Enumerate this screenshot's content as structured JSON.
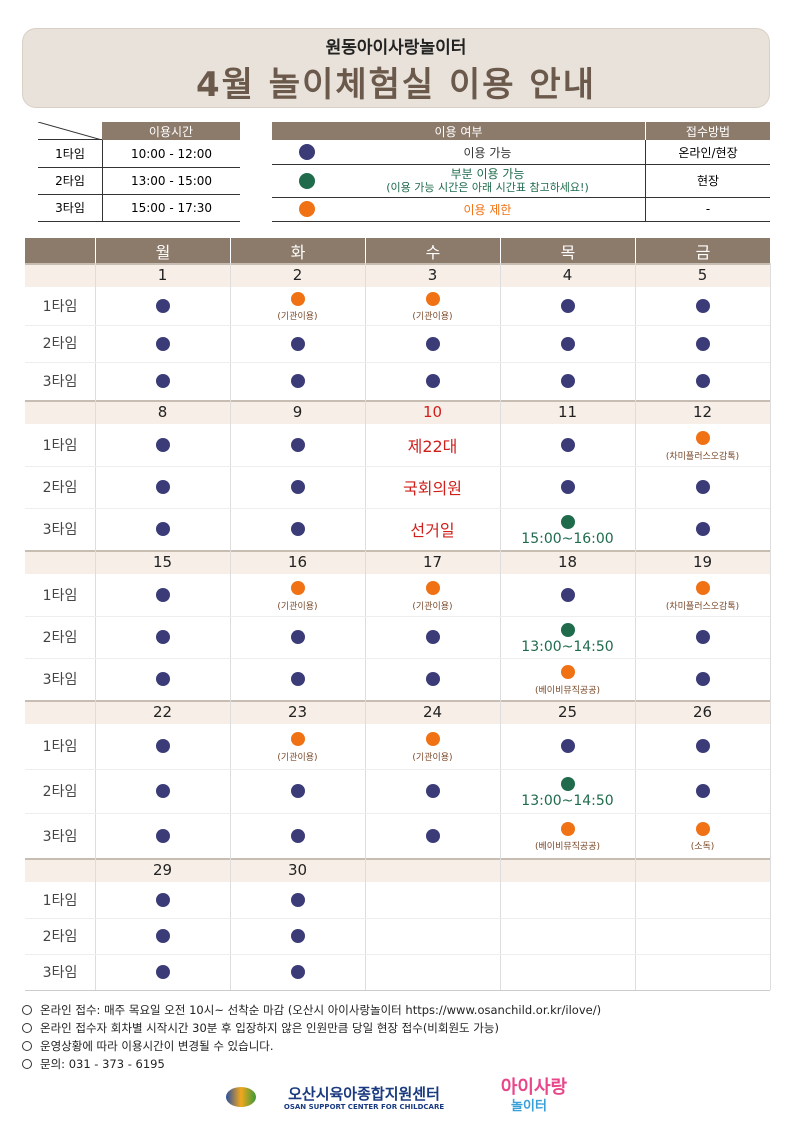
{
  "header": {
    "org": "원동아이사랑놀이터",
    "title": "4월 놀이체험실 이용 안내"
  },
  "time_table": {
    "header": "이용시간",
    "rows": [
      [
        "1타임",
        "10:00 - 12:00"
      ],
      [
        "2타임",
        "13:00 - 15:00"
      ],
      [
        "3타임",
        "15:00 - 17:30"
      ]
    ]
  },
  "legend": {
    "headers": [
      "이용 여부",
      "접수방법"
    ],
    "rows": [
      {
        "key": "ok",
        "color": "#3b3b78",
        "label": [
          "이용 가능"
        ],
        "method": "온라인/현장"
      },
      {
        "key": "part",
        "color": "#1f6b4c",
        "label": [
          "부분 이용 가능",
          "(이용 가능 시간은 아래 시간표 참고하세요!)"
        ],
        "method": "현장"
      },
      {
        "key": "limit",
        "color": "#f07214",
        "label": [
          "이용 제한"
        ],
        "method": "-"
      }
    ]
  },
  "calendar": {
    "days": [
      "월",
      "화",
      "수",
      "목",
      "금"
    ],
    "slots": [
      "1타임",
      "2타임",
      "3타임"
    ],
    "holiday_color": "#d0201c",
    "weeks": [
      {
        "dates": [
          1,
          2,
          3,
          4,
          5
        ],
        "cells": [
          [
            {
              "s": "ok"
            },
            {
              "s": "limit",
              "note": "(기관이용)"
            },
            {
              "s": "limit",
              "note": "(기관이용)"
            },
            {
              "s": "ok"
            },
            {
              "s": "ok"
            }
          ],
          [
            {
              "s": "ok"
            },
            {
              "s": "ok"
            },
            {
              "s": "ok"
            },
            {
              "s": "ok"
            },
            {
              "s": "ok"
            }
          ],
          [
            {
              "s": "ok"
            },
            {
              "s": "ok"
            },
            {
              "s": "ok"
            },
            {
              "s": "ok"
            },
            {
              "s": "ok"
            }
          ]
        ]
      },
      {
        "dates": [
          8,
          9,
          10,
          11,
          12
        ],
        "holiday": 2,
        "cells": [
          [
            {
              "s": "ok"
            },
            {
              "s": "ok"
            },
            {
              "text": "제22대"
            },
            {
              "s": "ok"
            },
            {
              "s": "limit",
              "note": "(차미플러스오감톡)"
            }
          ],
          [
            {
              "s": "ok"
            },
            {
              "s": "ok"
            },
            {
              "text": "국회의원"
            },
            {
              "s": "ok"
            },
            {
              "s": "ok"
            }
          ],
          [
            {
              "s": "ok"
            },
            {
              "s": "ok"
            },
            {
              "text": "선거일"
            },
            {
              "s": "part",
              "note": "15:00~16:00"
            },
            {
              "s": "ok"
            }
          ]
        ]
      },
      {
        "dates": [
          15,
          16,
          17,
          18,
          19
        ],
        "cells": [
          [
            {
              "s": "ok"
            },
            {
              "s": "limit",
              "note": "(기관이용)"
            },
            {
              "s": "limit",
              "note": "(기관이용)"
            },
            {
              "s": "ok"
            },
            {
              "s": "limit",
              "note": "(차미플러스오감톡)"
            }
          ],
          [
            {
              "s": "ok"
            },
            {
              "s": "ok"
            },
            {
              "s": "ok"
            },
            {
              "s": "part",
              "note": "13:00~14:50"
            },
            {
              "s": "ok"
            }
          ],
          [
            {
              "s": "ok"
            },
            {
              "s": "ok"
            },
            {
              "s": "ok"
            },
            {
              "s": "limit",
              "note": "(베이비뮤직공공)"
            },
            {
              "s": "ok"
            }
          ]
        ]
      },
      {
        "dates": [
          22,
          23,
          24,
          25,
          26
        ],
        "cells": [
          [
            {
              "s": "ok"
            },
            {
              "s": "limit",
              "note": "(기관이용)"
            },
            {
              "s": "limit",
              "note": "(기관이용)"
            },
            {
              "s": "ok"
            },
            {
              "s": "ok"
            }
          ],
          [
            {
              "s": "ok"
            },
            {
              "s": "ok"
            },
            {
              "s": "ok"
            },
            {
              "s": "part",
              "note": "13:00~14:50"
            },
            {
              "s": "ok"
            }
          ],
          [
            {
              "s": "ok"
            },
            {
              "s": "ok"
            },
            {
              "s": "ok"
            },
            {
              "s": "limit",
              "note": "(베이비뮤직공공)"
            },
            {
              "s": "limit",
              "note": "(소독)"
            }
          ]
        ]
      },
      {
        "dates": [
          29,
          30
        ],
        "cells": [
          [
            {
              "s": "ok"
            },
            {
              "s": "ok"
            }
          ],
          [
            {
              "s": "ok"
            },
            {
              "s": "ok"
            }
          ],
          [
            {
              "s": "ok"
            },
            {
              "s": "ok"
            }
          ]
        ]
      }
    ]
  },
  "notes": [
    "온라인 접수: 매주 목요일 오전 10시~ 선착순 마감 (오산시 아이사랑놀이터 https://www.osanchild.or.kr/ilove/)",
    "온라인 접수자 회차별 시작시간 30분 후 입장하지 않은 인원만큼 당일 현장 접수(비회원도 가능)",
    "운영상황에 따라 이용시간이 변경될 수 있습니다.",
    "문의: 031 - 373 - 6195"
  ],
  "footer": {
    "center": "오산시육아종합지원센터",
    "center_en": "OSAN SUPPORT CENTER FOR CHILDCARE",
    "logo": [
      "아이사랑",
      "놀이터"
    ]
  }
}
